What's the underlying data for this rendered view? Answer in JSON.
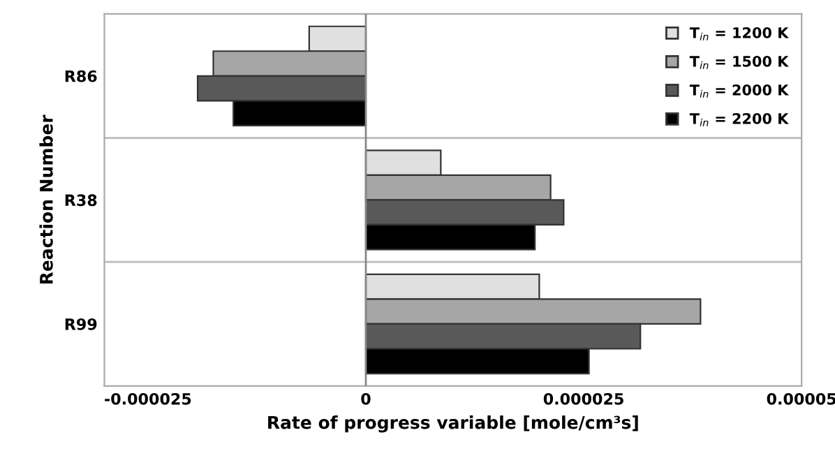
{
  "chart_data": {
    "type": "bar",
    "orientation": "horizontal",
    "categories": [
      "R86",
      "R38",
      "R99"
    ],
    "series": [
      {
        "name": "T$_{in}$ = 1200 K",
        "color": "#e0e0e0",
        "values": [
          -6.5e-06,
          8.6e-06,
          1.99e-05
        ]
      },
      {
        "name": "T$_{in}$ = 1500 K",
        "color": "#a6a6a6",
        "values": [
          -1.75e-05,
          2.12e-05,
          3.84e-05
        ]
      },
      {
        "name": "T$_{in}$ = 2000 K",
        "color": "#595959",
        "values": [
          -1.93e-05,
          2.27e-05,
          3.15e-05
        ]
      },
      {
        "name": "T$_{in}$ = 2200 K",
        "color": "#000000",
        "values": [
          -1.52e-05,
          1.94e-05,
          2.56e-05
        ]
      }
    ],
    "xlim": [
      -3e-05,
      5e-05
    ],
    "xticks": [
      {
        "value": -2.5e-05,
        "label": "-0.000025"
      },
      0,
      {
        "value": 2.5e-05,
        "label": "0.000025"
      },
      {
        "value": 5e-05,
        "label": "0.00005"
      }
    ],
    "xlabel": "Rate of progress variable [mole/cm³s]",
    "ylabel": "Reaction Number",
    "grid": "y",
    "legend": "top right"
  }
}
